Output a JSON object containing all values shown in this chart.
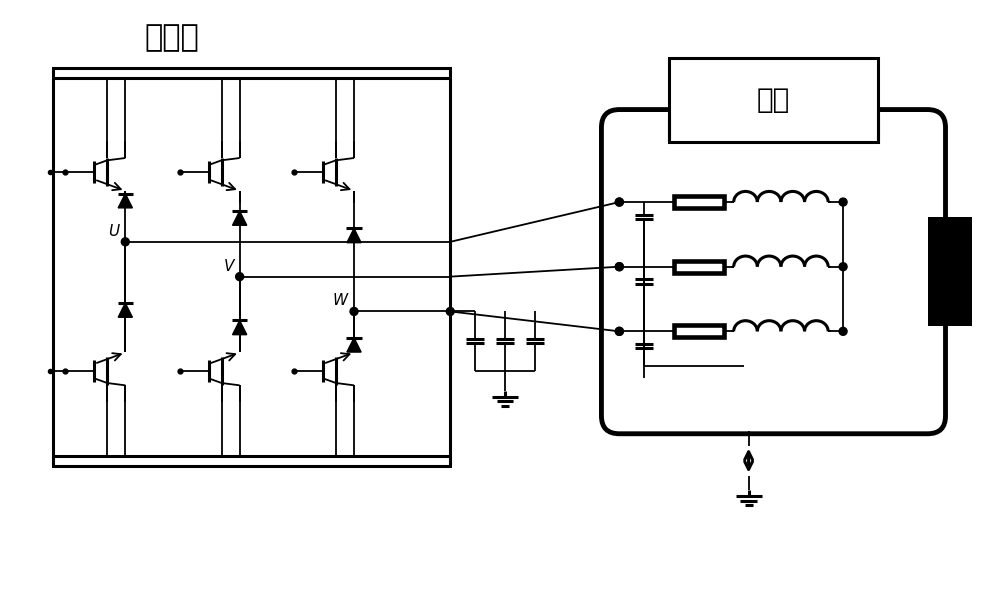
{
  "bg_color": "#ffffff",
  "line_color": "#000000",
  "inverter_label": "逆变器",
  "motor_label": "电机",
  "phase_labels": [
    "U",
    "V",
    "W"
  ],
  "figsize": [
    10.0,
    6.03
  ],
  "dpi": 100,
  "lw_thin": 1.3,
  "lw_thick": 2.2,
  "lw_vthick": 3.5
}
